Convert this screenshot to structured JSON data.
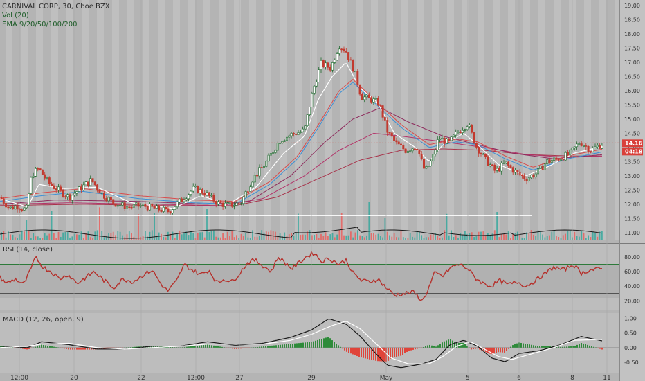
{
  "chart_data": {
    "type": "candlestick",
    "title": "CARNIVAL CORP, 30, Cboe BZX",
    "legend": {
      "volume": "Vol (20)",
      "ema": "EMA 9/20/50/100/200",
      "rsi": "RSI (14, close)",
      "macd": "MACD (12, 26, open, 9)"
    },
    "last_price_tag": "14.16",
    "countdown_tag": "04:18",
    "last_price": 14.16,
    "price_axis": {
      "ylim": [
        10.75,
        19.1
      ],
      "ticks": [
        "19.00",
        "18.50",
        "18.00",
        "17.50",
        "17.00",
        "16.50",
        "16.00",
        "15.50",
        "15.00",
        "14.50",
        "14.00",
        "13.50",
        "13.00",
        "12.50",
        "12.00",
        "11.50",
        "11.00"
      ]
    },
    "rsi_axis": {
      "ylim": [
        10,
        95
      ],
      "ticks": [
        "80.00",
        "60.00",
        "40.00",
        "20.00"
      ],
      "upper": 70,
      "lower": 30
    },
    "macd_axis": {
      "ylim": [
        -0.78,
        1.1
      ],
      "ticks": [
        "1.00",
        "0.50",
        "0.00",
        "-0.50"
      ]
    },
    "x_labels": [
      "12:00",
      "20",
      "22",
      "12:00",
      "27",
      "29",
      "May",
      "5",
      "6",
      "8",
      "11"
    ],
    "close_series": [
      [
        0,
        12.25
      ],
      [
        14,
        11.85
      ],
      [
        24,
        11.95
      ],
      [
        38,
        11.8
      ],
      [
        46,
        13.05
      ],
      [
        56,
        13.25
      ],
      [
        70,
        12.75
      ],
      [
        84,
        12.5
      ],
      [
        100,
        12.25
      ],
      [
        116,
        12.55
      ],
      [
        132,
        12.85
      ],
      [
        148,
        12.35
      ],
      [
        164,
        12.05
      ],
      [
        184,
        11.9
      ],
      [
        206,
        11.95
      ],
      [
        224,
        11.85
      ],
      [
        244,
        11.75
      ],
      [
        262,
        12.15
      ],
      [
        280,
        12.55
      ],
      [
        296,
        12.4
      ],
      [
        314,
        12.05
      ],
      [
        330,
        11.95
      ],
      [
        348,
        12.05
      ],
      [
        364,
        12.85
      ],
      [
        384,
        13.45
      ],
      [
        404,
        14.25
      ],
      [
        420,
        14.45
      ],
      [
        440,
        14.6
      ],
      [
        452,
        16.0
      ],
      [
        464,
        16.95
      ],
      [
        478,
        16.8
      ],
      [
        490,
        17.6
      ],
      [
        500,
        17.4
      ],
      [
        512,
        16.7
      ],
      [
        522,
        15.8
      ],
      [
        536,
        15.7
      ],
      [
        548,
        15.55
      ],
      [
        560,
        14.55
      ],
      [
        572,
        14.15
      ],
      [
        586,
        13.9
      ],
      [
        602,
        14.05
      ],
      [
        614,
        13.15
      ],
      [
        624,
        13.55
      ],
      [
        634,
        14.35
      ],
      [
        648,
        14.15
      ],
      [
        662,
        14.55
      ],
      [
        676,
        14.85
      ],
      [
        688,
        14.05
      ],
      [
        702,
        13.55
      ],
      [
        716,
        13.15
      ],
      [
        730,
        13.45
      ],
      [
        744,
        13.15
      ],
      [
        760,
        12.9
      ],
      [
        776,
        13.1
      ],
      [
        790,
        13.5
      ],
      [
        806,
        13.6
      ],
      [
        822,
        13.75
      ],
      [
        838,
        14.2
      ],
      [
        854,
        13.9
      ],
      [
        872,
        14.16
      ]
    ],
    "ema_fast": [
      [
        0,
        12.2
      ],
      [
        40,
        11.9
      ],
      [
        56,
        12.7
      ],
      [
        90,
        12.55
      ],
      [
        140,
        12.6
      ],
      [
        190,
        12.05
      ],
      [
        250,
        11.85
      ],
      [
        290,
        12.3
      ],
      [
        330,
        12.0
      ],
      [
        370,
        12.6
      ],
      [
        410,
        13.8
      ],
      [
        440,
        14.4
      ],
      [
        460,
        15.7
      ],
      [
        480,
        16.5
      ],
      [
        500,
        17.0
      ],
      [
        520,
        16.1
      ],
      [
        545,
        15.6
      ],
      [
        570,
        14.5
      ],
      [
        600,
        14.0
      ],
      [
        620,
        13.5
      ],
      [
        640,
        14.1
      ],
      [
        670,
        14.5
      ],
      [
        690,
        14.1
      ],
      [
        720,
        13.4
      ],
      [
        760,
        13.0
      ],
      [
        790,
        13.3
      ],
      [
        830,
        13.8
      ],
      [
        872,
        14.05
      ]
    ],
    "ema_mid": [
      [
        0,
        12.1
      ],
      [
        60,
        12.3
      ],
      [
        120,
        12.45
      ],
      [
        200,
        12.2
      ],
      [
        280,
        12.05
      ],
      [
        340,
        12.0
      ],
      [
        390,
        12.7
      ],
      [
        430,
        13.6
      ],
      [
        460,
        14.7
      ],
      [
        490,
        15.9
      ],
      [
        510,
        16.3
      ],
      [
        540,
        15.6
      ],
      [
        580,
        14.7
      ],
      [
        620,
        14.0
      ],
      [
        660,
        14.2
      ],
      [
        690,
        14.1
      ],
      [
        730,
        13.6
      ],
      [
        770,
        13.2
      ],
      [
        820,
        13.6
      ],
      [
        872,
        13.85
      ]
    ],
    "ema_slow": [
      [
        0,
        12.0
      ],
      [
        80,
        12.15
      ],
      [
        200,
        12.1
      ],
      [
        300,
        12.0
      ],
      [
        360,
        12.1
      ],
      [
        420,
        13.0
      ],
      [
        470,
        14.2
      ],
      [
        510,
        15.0
      ],
      [
        550,
        15.4
      ],
      [
        590,
        14.9
      ],
      [
        640,
        14.4
      ],
      [
        690,
        14.1
      ],
      [
        740,
        13.8
      ],
      [
        800,
        13.6
      ],
      [
        872,
        13.75
      ]
    ],
    "ema_100": [
      [
        0,
        12.0
      ],
      [
        100,
        12.05
      ],
      [
        220,
        12.0
      ],
      [
        320,
        11.95
      ],
      [
        380,
        12.2
      ],
      [
        440,
        13.0
      ],
      [
        490,
        13.9
      ],
      [
        540,
        14.5
      ],
      [
        580,
        14.4
      ],
      [
        640,
        14.2
      ],
      [
        700,
        14.0
      ],
      [
        760,
        13.75
      ],
      [
        820,
        13.65
      ],
      [
        872,
        13.7
      ]
    ],
    "ema_200": [
      [
        0,
        11.95
      ],
      [
        120,
        12.0
      ],
      [
        240,
        11.95
      ],
      [
        340,
        11.95
      ],
      [
        400,
        12.25
      ],
      [
        460,
        12.9
      ],
      [
        520,
        13.55
      ],
      [
        580,
        13.9
      ],
      [
        640,
        13.95
      ],
      [
        700,
        13.9
      ],
      [
        760,
        13.75
      ],
      [
        820,
        13.7
      ],
      [
        872,
        13.7
      ]
    ],
    "rsi": [
      [
        0,
        52
      ],
      [
        10,
        44
      ],
      [
        22,
        50
      ],
      [
        34,
        42
      ],
      [
        44,
        62
      ],
      [
        52,
        80
      ],
      [
        62,
        66
      ],
      [
        74,
        60
      ],
      [
        86,
        50
      ],
      [
        98,
        56
      ],
      [
        112,
        44
      ],
      [
        124,
        52
      ],
      [
        136,
        60
      ],
      [
        150,
        48
      ],
      [
        164,
        38
      ],
      [
        178,
        50
      ],
      [
        192,
        46
      ],
      [
        206,
        55
      ],
      [
        220,
        62
      ],
      [
        232,
        44
      ],
      [
        242,
        33
      ],
      [
        256,
        48
      ],
      [
        266,
        70
      ],
      [
        278,
        62
      ],
      [
        290,
        56
      ],
      [
        302,
        62
      ],
      [
        314,
        44
      ],
      [
        324,
        50
      ],
      [
        336,
        46
      ],
      [
        348,
        60
      ],
      [
        358,
        72
      ],
      [
        368,
        76
      ],
      [
        380,
        68
      ],
      [
        392,
        60
      ],
      [
        402,
        80
      ],
      [
        412,
        72
      ],
      [
        422,
        64
      ],
      [
        432,
        72
      ],
      [
        442,
        80
      ],
      [
        454,
        86
      ],
      [
        464,
        74
      ],
      [
        476,
        78
      ],
      [
        490,
        70
      ],
      [
        500,
        76
      ],
      [
        510,
        58
      ],
      [
        522,
        48
      ],
      [
        534,
        46
      ],
      [
        546,
        50
      ],
      [
        558,
        38
      ],
      [
        570,
        28
      ],
      [
        584,
        30
      ],
      [
        598,
        32
      ],
      [
        610,
        20
      ],
      [
        618,
        34
      ],
      [
        628,
        58
      ],
      [
        640,
        54
      ],
      [
        652,
        66
      ],
      [
        664,
        70
      ],
      [
        676,
        64
      ],
      [
        686,
        52
      ],
      [
        698,
        44
      ],
      [
        710,
        40
      ],
      [
        722,
        48
      ],
      [
        734,
        42
      ],
      [
        748,
        46
      ],
      [
        760,
        40
      ],
      [
        774,
        48
      ],
      [
        786,
        56
      ],
      [
        800,
        66
      ],
      [
        814,
        62
      ],
      [
        828,
        70
      ],
      [
        840,
        58
      ],
      [
        852,
        62
      ],
      [
        872,
        64
      ]
    ],
    "macd": [
      [
        0,
        0.05
      ],
      [
        40,
        0.0
      ],
      [
        60,
        0.2
      ],
      [
        100,
        0.1
      ],
      [
        140,
        -0.05
      ],
      [
        180,
        -0.05
      ],
      [
        220,
        0.05
      ],
      [
        260,
        0.05
      ],
      [
        300,
        0.2
      ],
      [
        340,
        0.08
      ],
      [
        380,
        0.15
      ],
      [
        420,
        0.35
      ],
      [
        450,
        0.6
      ],
      [
        475,
        0.98
      ],
      [
        500,
        0.8
      ],
      [
        520,
        0.4
      ],
      [
        545,
        -0.25
      ],
      [
        560,
        -0.6
      ],
      [
        580,
        -0.68
      ],
      [
        610,
        -0.55
      ],
      [
        630,
        -0.4
      ],
      [
        650,
        0.1
      ],
      [
        670,
        0.25
      ],
      [
        690,
        0.05
      ],
      [
        710,
        -0.35
      ],
      [
        730,
        -0.48
      ],
      [
        750,
        -0.2
      ],
      [
        780,
        -0.1
      ],
      [
        810,
        0.1
      ],
      [
        840,
        0.38
      ],
      [
        872,
        0.22
      ]
    ],
    "macd_signal": [
      [
        0,
        0.0
      ],
      [
        40,
        0.05
      ],
      [
        60,
        0.12
      ],
      [
        100,
        0.15
      ],
      [
        140,
        0.0
      ],
      [
        180,
        -0.05
      ],
      [
        220,
        0.0
      ],
      [
        260,
        0.05
      ],
      [
        300,
        0.12
      ],
      [
        340,
        0.12
      ],
      [
        380,
        0.12
      ],
      [
        420,
        0.25
      ],
      [
        450,
        0.45
      ],
      [
        480,
        0.75
      ],
      [
        500,
        0.9
      ],
      [
        520,
        0.65
      ],
      [
        545,
        0.1
      ],
      [
        565,
        -0.35
      ],
      [
        590,
        -0.55
      ],
      [
        620,
        -0.55
      ],
      [
        640,
        -0.3
      ],
      [
        660,
        0.05
      ],
      [
        680,
        0.2
      ],
      [
        700,
        -0.05
      ],
      [
        720,
        -0.3
      ],
      [
        740,
        -0.4
      ],
      [
        770,
        -0.2
      ],
      [
        800,
        0.0
      ],
      [
        830,
        0.25
      ],
      [
        872,
        0.28
      ]
    ]
  }
}
